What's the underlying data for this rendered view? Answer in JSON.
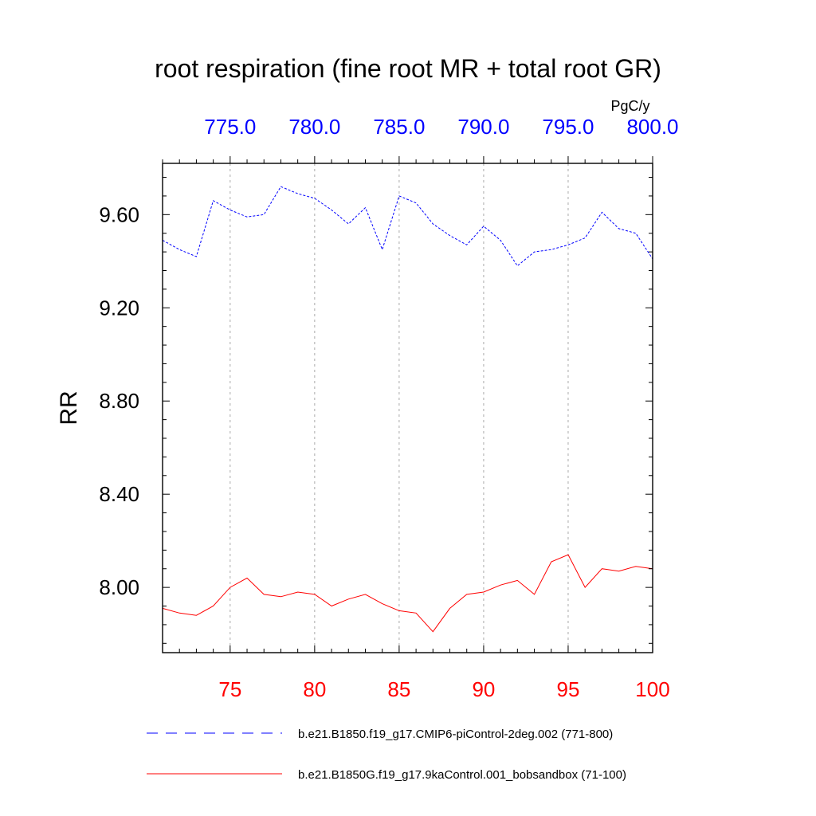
{
  "chart_data": {
    "type": "line",
    "title": "root respiration (fine root MR + total root GR)",
    "units": "PgC/y",
    "ylabel": "RR",
    "xlabel": "",
    "ylim": [
      7.72,
      9.82
    ],
    "yticks": [
      8.0,
      8.4,
      8.8,
      9.2,
      9.6
    ],
    "ytick_labels": [
      "8.00",
      "8.40",
      "8.80",
      "9.20",
      "9.60"
    ],
    "grid": "vertical dashed",
    "legend_position": "bottom",
    "x_bottom": {
      "range": [
        71,
        100
      ],
      "color": "#ff0000",
      "ticks": [
        75,
        80,
        85,
        90,
        95,
        100
      ],
      "tick_labels": [
        "75",
        "80",
        "85",
        "90",
        "95",
        "100"
      ]
    },
    "x_top": {
      "range": [
        771,
        800
      ],
      "color": "#0000ff",
      "ticks": [
        775,
        780,
        785,
        790,
        795,
        800
      ],
      "tick_labels": [
        "775.0",
        "780.0",
        "785.0",
        "790.0",
        "795.0",
        "800.0"
      ]
    },
    "series": [
      {
        "name": "b.e21.B1850.f19_g17.CMIP6-piControl-2deg.002 (771-800)",
        "axis": "top",
        "color": "#0000ff",
        "dash": "dashed",
        "x": [
          771,
          772,
          773,
          774,
          775,
          776,
          777,
          778,
          779,
          780,
          781,
          782,
          783,
          784,
          785,
          786,
          787,
          788,
          789,
          790,
          791,
          792,
          793,
          794,
          795,
          796,
          797,
          798,
          799,
          800
        ],
        "values": [
          9.49,
          9.45,
          9.42,
          9.66,
          9.62,
          9.59,
          9.6,
          9.72,
          9.69,
          9.67,
          9.62,
          9.56,
          9.63,
          9.45,
          9.68,
          9.65,
          9.56,
          9.51,
          9.47,
          9.55,
          9.49,
          9.38,
          9.44,
          9.45,
          9.47,
          9.5,
          9.61,
          9.54,
          9.52,
          9.41
        ]
      },
      {
        "name": "b.e21.B1850G.f19_g17.9kaControl.001_bobsandbox (71-100)",
        "axis": "bottom",
        "color": "#ff0000",
        "dash": "solid",
        "x": [
          71,
          72,
          73,
          74,
          75,
          76,
          77,
          78,
          79,
          80,
          81,
          82,
          83,
          84,
          85,
          86,
          87,
          88,
          89,
          90,
          91,
          92,
          93,
          94,
          95,
          96,
          97,
          98,
          99,
          100
        ],
        "values": [
          7.91,
          7.89,
          7.88,
          7.92,
          8.0,
          8.04,
          7.97,
          7.96,
          7.98,
          7.97,
          7.92,
          7.95,
          7.97,
          7.93,
          7.9,
          7.89,
          7.81,
          7.91,
          7.97,
          7.98,
          8.01,
          8.03,
          7.97,
          8.11,
          8.14,
          8.0,
          8.08,
          8.07,
          8.09,
          8.08
        ]
      }
    ]
  }
}
